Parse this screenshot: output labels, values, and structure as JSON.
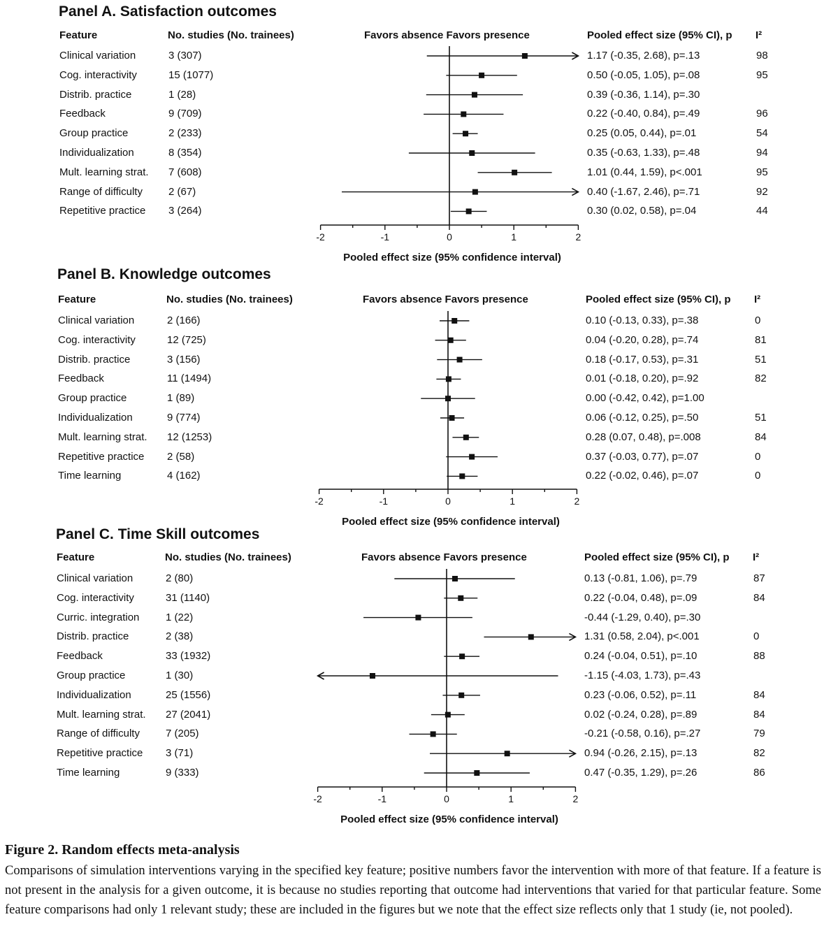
{
  "chart_data": [
    {
      "type": "forest",
      "title": "Panel A. Satisfaction outcomes",
      "columns": {
        "feature": "Feature",
        "studies": "No. studies (No. trainees)",
        "favors": "Favors absence Favors presence",
        "effect": "Pooled effect size (95% CI), p",
        "i2": "I²"
      },
      "xlabel": "Pooled effect size (95% confidence interval)",
      "xlim": [
        -2,
        2
      ],
      "ticks": [
        "-2",
        "-1",
        "0",
        "1",
        "2"
      ],
      "rows": [
        {
          "feature": "Clinical variation",
          "studies": "3 (307)",
          "est": 1.17,
          "lo": -0.35,
          "hi": 2.68,
          "label": "1.17 (-0.35, 2.68), p=.13",
          "i2": "98"
        },
        {
          "feature": "Cog. interactivity",
          "studies": "15 (1077)",
          "est": 0.5,
          "lo": -0.05,
          "hi": 1.05,
          "label": "0.50 (-0.05, 1.05), p=.08",
          "i2": "95"
        },
        {
          "feature": "Distrib. practice",
          "studies": "1 (28)",
          "est": 0.39,
          "lo": -0.36,
          "hi": 1.14,
          "label": "0.39 (-0.36, 1.14), p=.30",
          "i2": ""
        },
        {
          "feature": "Feedback",
          "studies": "9 (709)",
          "est": 0.22,
          "lo": -0.4,
          "hi": 0.84,
          "label": "0.22 (-0.40, 0.84), p=.49",
          "i2": "96"
        },
        {
          "feature": "Group practice",
          "studies": "2 (233)",
          "est": 0.25,
          "lo": 0.05,
          "hi": 0.44,
          "label": "0.25 (0.05, 0.44), p=.01",
          "i2": "54"
        },
        {
          "feature": "Individualization",
          "studies": "8 (354)",
          "est": 0.35,
          "lo": -0.63,
          "hi": 1.33,
          "label": "0.35 (-0.63, 1.33), p=.48",
          "i2": "94"
        },
        {
          "feature": "Mult. learning strat.",
          "studies": "7 (608)",
          "est": 1.01,
          "lo": 0.44,
          "hi": 1.59,
          "label": "1.01 (0.44, 1.59), p<.001",
          "i2": "95"
        },
        {
          "feature": "Range of difficulty",
          "studies": "2 (67)",
          "est": 0.4,
          "lo": -1.67,
          "hi": 2.46,
          "label": "0.40 (-1.67, 2.46), p=.71",
          "i2": "92"
        },
        {
          "feature": "Repetitive practice",
          "studies": "3 (264)",
          "est": 0.3,
          "lo": 0.02,
          "hi": 0.58,
          "label": "0.30 (0.02, 0.58), p=.04",
          "i2": "44"
        }
      ]
    },
    {
      "type": "forest",
      "title": "Panel B. Knowledge outcomes",
      "columns": {
        "feature": "Feature",
        "studies": "No. studies (No. trainees)",
        "favors": "Favors absence Favors presence",
        "effect": "Pooled effect size (95% CI), p",
        "i2": "I²"
      },
      "xlabel": "Pooled effect size (95% confidence interval)",
      "xlim": [
        -2,
        2
      ],
      "ticks": [
        "-2",
        "-1",
        "0",
        "1",
        "2"
      ],
      "rows": [
        {
          "feature": "Clinical variation",
          "studies": "2 (166)",
          "est": 0.1,
          "lo": -0.13,
          "hi": 0.33,
          "label": "0.10 (-0.13, 0.33), p=.38",
          "i2": "0"
        },
        {
          "feature": "Cog. interactivity",
          "studies": "12 (725)",
          "est": 0.04,
          "lo": -0.2,
          "hi": 0.28,
          "label": "0.04 (-0.20, 0.28), p=.74",
          "i2": "81"
        },
        {
          "feature": "Distrib. practice",
          "studies": "3 (156)",
          "est": 0.18,
          "lo": -0.17,
          "hi": 0.53,
          "label": "0.18 (-0.17, 0.53), p=.31",
          "i2": "51"
        },
        {
          "feature": "Feedback",
          "studies": "11 (1494)",
          "est": 0.01,
          "lo": -0.18,
          "hi": 0.2,
          "label": "0.01 (-0.18, 0.20), p=.92",
          "i2": "82"
        },
        {
          "feature": "Group practice",
          "studies": "1 (89)",
          "est": 0.0,
          "lo": -0.42,
          "hi": 0.42,
          "label": "0.00 (-0.42, 0.42), p=1.00",
          "i2": ""
        },
        {
          "feature": "Individualization",
          "studies": "9 (774)",
          "est": 0.06,
          "lo": -0.12,
          "hi": 0.25,
          "label": "0.06 (-0.12, 0.25), p=.50",
          "i2": "51"
        },
        {
          "feature": "Mult. learning strat.",
          "studies": "12 (1253)",
          "est": 0.28,
          "lo": 0.07,
          "hi": 0.48,
          "label": "0.28 (0.07, 0.48), p=.008",
          "i2": "84"
        },
        {
          "feature": "Repetitive practice",
          "studies": "2 (58)",
          "est": 0.37,
          "lo": -0.03,
          "hi": 0.77,
          "label": "0.37 (-0.03, 0.77), p=.07",
          "i2": "0"
        },
        {
          "feature": "Time learning",
          "studies": "4 (162)",
          "est": 0.22,
          "lo": -0.02,
          "hi": 0.46,
          "label": "0.22 (-0.02, 0.46), p=.07",
          "i2": "0"
        }
      ]
    },
    {
      "type": "forest",
      "title": "Panel C. Time Skill outcomes",
      "columns": {
        "feature": "Feature",
        "studies": "No. studies (No. trainees)",
        "favors": "Favors absence Favors presence",
        "effect": "Pooled effect size (95% CI), p",
        "i2": "I²"
      },
      "xlabel": "Pooled effect size (95% confidence interval)",
      "xlim": [
        -2,
        2
      ],
      "ticks": [
        "-2",
        "-1",
        "0",
        "1",
        "2"
      ],
      "rows": [
        {
          "feature": "Clinical variation",
          "studies": "2 (80)",
          "est": 0.13,
          "lo": -0.81,
          "hi": 1.06,
          "label": "0.13 (-0.81, 1.06), p=.79",
          "i2": "87"
        },
        {
          "feature": "Cog. interactivity",
          "studies": "31 (1140)",
          "est": 0.22,
          "lo": -0.04,
          "hi": 0.48,
          "label": "0.22 (-0.04, 0.48), p=.09",
          "i2": "84"
        },
        {
          "feature": "Curric. integration",
          "studies": "1 (22)",
          "est": -0.44,
          "lo": -1.29,
          "hi": 0.4,
          "label": "-0.44 (-1.29, 0.40), p=.30",
          "i2": ""
        },
        {
          "feature": "Distrib. practice",
          "studies": "2 (38)",
          "est": 1.31,
          "lo": 0.58,
          "hi": 2.04,
          "label": "1.31 (0.58, 2.04), p<.001",
          "i2": "0"
        },
        {
          "feature": "Feedback",
          "studies": "33 (1932)",
          "est": 0.24,
          "lo": -0.04,
          "hi": 0.51,
          "label": "0.24 (-0.04, 0.51), p=.10",
          "i2": "88"
        },
        {
          "feature": "Group practice",
          "studies": "1 (30)",
          "est": -1.15,
          "lo": -4.03,
          "hi": 1.73,
          "label": "-1.15 (-4.03, 1.73), p=.43",
          "i2": ""
        },
        {
          "feature": "Individualization",
          "studies": "25 (1556)",
          "est": 0.23,
          "lo": -0.06,
          "hi": 0.52,
          "label": "0.23 (-0.06, 0.52), p=.11",
          "i2": "84"
        },
        {
          "feature": "Mult. learning strat.",
          "studies": "27 (2041)",
          "est": 0.02,
          "lo": -0.24,
          "hi": 0.28,
          "label": "0.02 (-0.24, 0.28), p=.89",
          "i2": "84"
        },
        {
          "feature": "Range of difficulty",
          "studies": "7 (205)",
          "est": -0.21,
          "lo": -0.58,
          "hi": 0.16,
          "label": "-0.21 (-0.58, 0.16), p=.27",
          "i2": "79"
        },
        {
          "feature": "Repetitive practice",
          "studies": "3 (71)",
          "est": 0.94,
          "lo": -0.26,
          "hi": 2.15,
          "label": "0.94 (-0.26, 2.15), p=.13",
          "i2": "82"
        },
        {
          "feature": "Time learning",
          "studies": "9 (333)",
          "est": 0.47,
          "lo": -0.35,
          "hi": 1.29,
          "label": "0.47 (-0.35, 1.29), p=.26",
          "i2": "86"
        }
      ]
    }
  ],
  "caption": {
    "title": "Figure 2.  Random effects meta-analysis",
    "text": "Comparisons of simulation interventions varying in the specified key feature; positive numbers favor the intervention with more of that feature. If a feature is not present in the analysis for a given outcome, it is because no studies reporting that outcome had interventions that varied for that particular feature. Some feature comparisons had only 1 relevant study; these are included in the figures but we note that the effect size reflects only that 1 study (ie, not pooled)."
  }
}
